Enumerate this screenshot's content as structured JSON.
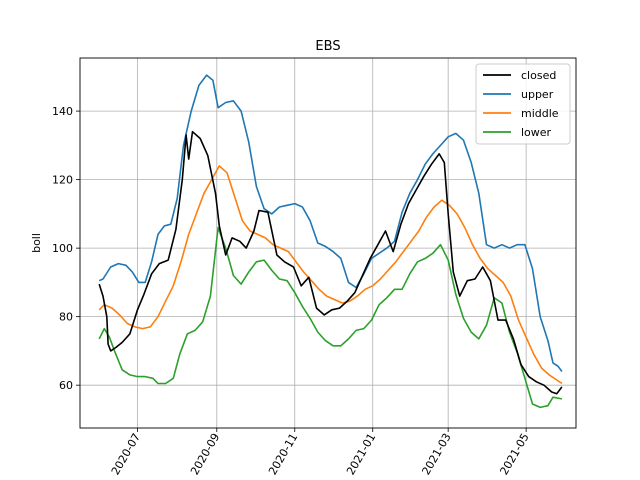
{
  "chart_data": {
    "type": "line",
    "title": "EBS",
    "xlabel": "",
    "ylabel": "boll",
    "x_ticks": [
      "2020-07",
      "2020-09",
      "2020-11",
      "2021-01",
      "2021-03",
      "2021-05"
    ],
    "y_ticks": [
      60,
      80,
      100,
      120,
      140
    ],
    "xlim": [
      "2020-05-17",
      "2021-06-09"
    ],
    "ylim": [
      47.5,
      155.5
    ],
    "grid": true,
    "legend_position": "top-right",
    "series": [
      {
        "name": "closed",
        "color": "#000000",
        "points": [
          [
            "2020-06-01",
            89.5
          ],
          [
            "2020-06-04",
            86.0
          ],
          [
            "2020-06-07",
            80.0
          ],
          [
            "2020-06-08",
            72.0
          ],
          [
            "2020-06-10",
            70.0
          ],
          [
            "2020-06-14",
            71.0
          ],
          [
            "2020-06-19",
            72.5
          ],
          [
            "2020-06-25",
            75.0
          ],
          [
            "2020-07-01",
            82.0
          ],
          [
            "2020-07-06",
            86.5
          ],
          [
            "2020-07-12",
            92.5
          ],
          [
            "2020-07-18",
            95.5
          ],
          [
            "2020-07-25",
            96.5
          ],
          [
            "2020-07-31",
            105.5
          ],
          [
            "2020-08-05",
            120.0
          ],
          [
            "2020-08-08",
            133.0
          ],
          [
            "2020-08-10",
            126.0
          ],
          [
            "2020-08-13",
            134.0
          ],
          [
            "2020-08-19",
            132.0
          ],
          [
            "2020-08-25",
            127.0
          ],
          [
            "2020-08-31",
            116.0
          ],
          [
            "2020-09-03",
            106.5
          ],
          [
            "2020-09-08",
            98.0
          ],
          [
            "2020-09-13",
            103.0
          ],
          [
            "2020-09-19",
            102.0
          ],
          [
            "2020-09-24",
            100.0
          ],
          [
            "2020-09-30",
            105.0
          ],
          [
            "2020-10-04",
            111.0
          ],
          [
            "2020-10-11",
            110.5
          ],
          [
            "2020-10-18",
            98.0
          ],
          [
            "2020-10-24",
            96.0
          ],
          [
            "2020-10-31",
            94.5
          ],
          [
            "2020-11-06",
            89.0
          ],
          [
            "2020-11-12",
            91.5
          ],
          [
            "2020-11-18",
            82.5
          ],
          [
            "2020-11-24",
            80.5
          ],
          [
            "2020-11-30",
            82.0
          ],
          [
            "2020-12-06",
            82.5
          ],
          [
            "2020-12-12",
            84.5
          ],
          [
            "2020-12-18",
            87.0
          ],
          [
            "2020-12-24",
            92.0
          ],
          [
            "2020-12-30",
            97.0
          ],
          [
            "2021-01-05",
            101.0
          ],
          [
            "2021-01-11",
            105.0
          ],
          [
            "2021-01-17",
            99.0
          ],
          [
            "2021-01-23",
            107.0
          ],
          [
            "2021-01-29",
            113.0
          ],
          [
            "2021-02-04",
            117.0
          ],
          [
            "2021-02-10",
            121.0
          ],
          [
            "2021-02-16",
            124.5
          ],
          [
            "2021-02-22",
            127.5
          ],
          [
            "2021-02-26",
            125.0
          ],
          [
            "2021-03-01",
            110.0
          ],
          [
            "2021-03-05",
            93.0
          ],
          [
            "2021-03-10",
            86.0
          ],
          [
            "2021-03-16",
            90.5
          ],
          [
            "2021-03-22",
            91.0
          ],
          [
            "2021-03-28",
            94.5
          ],
          [
            "2021-04-03",
            90.5
          ],
          [
            "2021-04-09",
            79.0
          ],
          [
            "2021-04-15",
            79.0
          ],
          [
            "2021-04-21",
            73.5
          ],
          [
            "2021-04-27",
            66.0
          ],
          [
            "2021-05-03",
            62.5
          ],
          [
            "2021-05-09",
            61.0
          ],
          [
            "2021-05-15",
            60.0
          ],
          [
            "2021-05-21",
            58.0
          ],
          [
            "2021-05-25",
            57.5
          ],
          [
            "2021-05-29",
            59.5
          ]
        ]
      },
      {
        "name": "upper",
        "color": "#1f77b4",
        "points": [
          [
            "2020-06-01",
            90.5
          ],
          [
            "2020-06-04",
            91.0
          ],
          [
            "2020-06-10",
            94.5
          ],
          [
            "2020-06-16",
            95.5
          ],
          [
            "2020-06-22",
            95.0
          ],
          [
            "2020-06-27",
            93.0
          ],
          [
            "2020-07-02",
            90.0
          ],
          [
            "2020-07-07",
            90.0
          ],
          [
            "2020-07-12",
            96.0
          ],
          [
            "2020-07-17",
            104.0
          ],
          [
            "2020-07-22",
            106.5
          ],
          [
            "2020-07-27",
            107.0
          ],
          [
            "2020-08-01",
            114.5
          ],
          [
            "2020-08-06",
            130.0
          ],
          [
            "2020-08-12",
            140.0
          ],
          [
            "2020-08-18",
            147.5
          ],
          [
            "2020-08-24",
            150.5
          ],
          [
            "2020-08-29",
            149.0
          ],
          [
            "2020-09-02",
            141.0
          ],
          [
            "2020-09-08",
            142.5
          ],
          [
            "2020-09-14",
            143.0
          ],
          [
            "2020-09-20",
            140.0
          ],
          [
            "2020-09-26",
            131.0
          ],
          [
            "2020-10-02",
            118.0
          ],
          [
            "2020-10-08",
            111.5
          ],
          [
            "2020-10-14",
            110.0
          ],
          [
            "2020-10-20",
            112.0
          ],
          [
            "2020-10-26",
            112.5
          ],
          [
            "2020-11-01",
            113.0
          ],
          [
            "2020-11-07",
            112.0
          ],
          [
            "2020-11-13",
            108.0
          ],
          [
            "2020-11-19",
            101.5
          ],
          [
            "2020-11-25",
            100.5
          ],
          [
            "2020-12-01",
            99.0
          ],
          [
            "2020-12-07",
            97.0
          ],
          [
            "2020-12-13",
            90.0
          ],
          [
            "2020-12-19",
            88.5
          ],
          [
            "2020-12-25",
            92.5
          ],
          [
            "2020-12-31",
            97.0
          ],
          [
            "2021-01-06",
            98.5
          ],
          [
            "2021-01-12",
            100.0
          ],
          [
            "2021-01-18",
            102.0
          ],
          [
            "2021-01-24",
            110.5
          ],
          [
            "2021-01-30",
            116.0
          ],
          [
            "2021-02-05",
            120.0
          ],
          [
            "2021-02-11",
            124.5
          ],
          [
            "2021-02-17",
            127.5
          ],
          [
            "2021-02-23",
            130.0
          ],
          [
            "2021-03-01",
            132.5
          ],
          [
            "2021-03-07",
            133.5
          ],
          [
            "2021-03-13",
            131.5
          ],
          [
            "2021-03-19",
            125.0
          ],
          [
            "2021-03-25",
            116.0
          ],
          [
            "2021-03-31",
            101.0
          ],
          [
            "2021-04-06",
            100.0
          ],
          [
            "2021-04-12",
            101.0
          ],
          [
            "2021-04-18",
            100.0
          ],
          [
            "2021-04-24",
            101.0
          ],
          [
            "2021-04-30",
            101.0
          ],
          [
            "2021-05-06",
            94.0
          ],
          [
            "2021-05-12",
            80.0
          ],
          [
            "2021-05-18",
            73.0
          ],
          [
            "2021-05-22",
            66.5
          ],
          [
            "2021-05-26",
            65.5
          ],
          [
            "2021-05-29",
            64.0
          ]
        ]
      },
      {
        "name": "middle",
        "color": "#ff7f0e",
        "points": [
          [
            "2020-06-01",
            82.0
          ],
          [
            "2020-06-05",
            83.5
          ],
          [
            "2020-06-11",
            82.5
          ],
          [
            "2020-06-17",
            80.5
          ],
          [
            "2020-06-23",
            78.0
          ],
          [
            "2020-06-29",
            77.0
          ],
          [
            "2020-07-05",
            76.5
          ],
          [
            "2020-07-11",
            77.0
          ],
          [
            "2020-07-17",
            80.0
          ],
          [
            "2020-07-23",
            84.5
          ],
          [
            "2020-07-29",
            89.0
          ],
          [
            "2020-08-04",
            96.0
          ],
          [
            "2020-08-10",
            104.0
          ],
          [
            "2020-08-16",
            110.0
          ],
          [
            "2020-08-22",
            116.0
          ],
          [
            "2020-08-28",
            120.0
          ],
          [
            "2020-09-03",
            124.0
          ],
          [
            "2020-09-09",
            122.0
          ],
          [
            "2020-09-15",
            115.0
          ],
          [
            "2020-09-21",
            108.0
          ],
          [
            "2020-09-27",
            105.0
          ],
          [
            "2020-10-03",
            104.0
          ],
          [
            "2020-10-09",
            103.0
          ],
          [
            "2020-10-15",
            101.0
          ],
          [
            "2020-10-21",
            100.0
          ],
          [
            "2020-10-27",
            99.0
          ],
          [
            "2020-11-02",
            96.0
          ],
          [
            "2020-11-08",
            93.0
          ],
          [
            "2020-11-14",
            90.5
          ],
          [
            "2020-11-20",
            88.0
          ],
          [
            "2020-11-26",
            86.0
          ],
          [
            "2020-12-02",
            85.0
          ],
          [
            "2020-12-08",
            84.0
          ],
          [
            "2020-12-14",
            84.5
          ],
          [
            "2020-12-20",
            86.0
          ],
          [
            "2020-12-26",
            88.0
          ],
          [
            "2021-01-01",
            89.0
          ],
          [
            "2021-01-07",
            91.0
          ],
          [
            "2021-01-13",
            93.5
          ],
          [
            "2021-01-19",
            96.0
          ],
          [
            "2021-01-25",
            99.0
          ],
          [
            "2021-01-31",
            102.0
          ],
          [
            "2021-02-06",
            105.0
          ],
          [
            "2021-02-12",
            109.0
          ],
          [
            "2021-02-18",
            112.0
          ],
          [
            "2021-02-24",
            114.0
          ],
          [
            "2021-03-02",
            112.5
          ],
          [
            "2021-03-08",
            110.0
          ],
          [
            "2021-03-14",
            106.0
          ],
          [
            "2021-03-20",
            101.0
          ],
          [
            "2021-03-26",
            97.0
          ],
          [
            "2021-04-01",
            94.0
          ],
          [
            "2021-04-07",
            92.0
          ],
          [
            "2021-04-13",
            90.0
          ],
          [
            "2021-04-19",
            86.0
          ],
          [
            "2021-04-25",
            79.0
          ],
          [
            "2021-05-01",
            74.0
          ],
          [
            "2021-05-07",
            69.0
          ],
          [
            "2021-05-13",
            65.0
          ],
          [
            "2021-05-19",
            63.0
          ],
          [
            "2021-05-25",
            61.5
          ],
          [
            "2021-05-29",
            60.5
          ]
        ]
      },
      {
        "name": "lower",
        "color": "#2ca02c",
        "points": [
          [
            "2020-06-01",
            73.5
          ],
          [
            "2020-06-05",
            76.5
          ],
          [
            "2020-06-09",
            74.0
          ],
          [
            "2020-06-13",
            70.0
          ],
          [
            "2020-06-19",
            64.5
          ],
          [
            "2020-06-25",
            63.0
          ],
          [
            "2020-07-01",
            62.5
          ],
          [
            "2020-07-07",
            62.5
          ],
          [
            "2020-07-13",
            62.0
          ],
          [
            "2020-07-17",
            60.5
          ],
          [
            "2020-07-23",
            60.5
          ],
          [
            "2020-07-29",
            62.0
          ],
          [
            "2020-08-03",
            69.0
          ],
          [
            "2020-08-09",
            75.0
          ],
          [
            "2020-08-15",
            76.0
          ],
          [
            "2020-08-21",
            78.5
          ],
          [
            "2020-08-27",
            86.0
          ],
          [
            "2020-09-02",
            106.0
          ],
          [
            "2020-09-08",
            100.0
          ],
          [
            "2020-09-14",
            92.0
          ],
          [
            "2020-09-20",
            89.5
          ],
          [
            "2020-09-26",
            93.0
          ],
          [
            "2020-10-02",
            96.0
          ],
          [
            "2020-10-08",
            96.5
          ],
          [
            "2020-10-14",
            93.5
          ],
          [
            "2020-10-20",
            91.0
          ],
          [
            "2020-10-26",
            90.5
          ],
          [
            "2020-11-01",
            87.0
          ],
          [
            "2020-11-07",
            83.0
          ],
          [
            "2020-11-13",
            79.5
          ],
          [
            "2020-11-19",
            75.5
          ],
          [
            "2020-11-25",
            73.0
          ],
          [
            "2020-12-01",
            71.5
          ],
          [
            "2020-12-07",
            71.5
          ],
          [
            "2020-12-13",
            73.5
          ],
          [
            "2020-12-19",
            76.0
          ],
          [
            "2020-12-25",
            76.5
          ],
          [
            "2020-12-31",
            79.0
          ],
          [
            "2021-01-06",
            83.5
          ],
          [
            "2021-01-12",
            85.5
          ],
          [
            "2021-01-18",
            88.0
          ],
          [
            "2021-01-24",
            88.0
          ],
          [
            "2021-01-30",
            92.5
          ],
          [
            "2021-02-05",
            96.0
          ],
          [
            "2021-02-11",
            97.0
          ],
          [
            "2021-02-17",
            98.5
          ],
          [
            "2021-02-23",
            101.0
          ],
          [
            "2021-03-01",
            96.5
          ],
          [
            "2021-03-07",
            86.5
          ],
          [
            "2021-03-13",
            79.5
          ],
          [
            "2021-03-19",
            75.5
          ],
          [
            "2021-03-25",
            73.5
          ],
          [
            "2021-03-31",
            77.5
          ],
          [
            "2021-04-06",
            85.5
          ],
          [
            "2021-04-12",
            84.0
          ],
          [
            "2021-04-18",
            75.5
          ],
          [
            "2021-04-24",
            69.5
          ],
          [
            "2021-04-30",
            62.0
          ],
          [
            "2021-05-06",
            54.5
          ],
          [
            "2021-05-12",
            53.5
          ],
          [
            "2021-05-18",
            54.0
          ],
          [
            "2021-05-22",
            56.5
          ],
          [
            "2021-05-29",
            56.0
          ]
        ]
      }
    ]
  }
}
